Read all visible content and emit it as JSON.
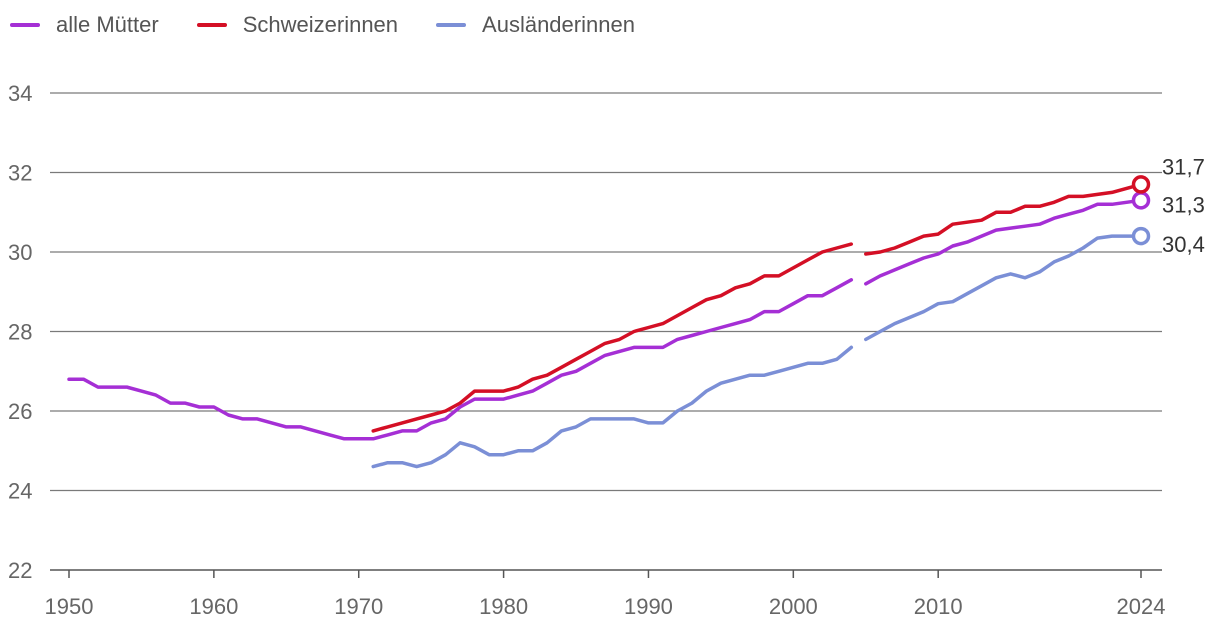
{
  "chart_data": {
    "type": "line",
    "title": "",
    "xlabel": "",
    "ylabel": "",
    "xlim": [
      1950,
      2024
    ],
    "ylim": [
      22,
      34
    ],
    "y_ticks": [
      22,
      24,
      26,
      28,
      30,
      32,
      34
    ],
    "x_ticks": [
      1950,
      1960,
      1970,
      1980,
      1990,
      2000,
      2010,
      2024
    ],
    "grid": true,
    "legend_position": "top-left",
    "gap_after_year": 2004,
    "series": [
      {
        "name": "alle Mütter",
        "color": "#a52fd5",
        "end_label": "31,3",
        "x": [
          1950,
          1951,
          1952,
          1953,
          1954,
          1955,
          1956,
          1957,
          1958,
          1959,
          1960,
          1961,
          1962,
          1963,
          1964,
          1965,
          1966,
          1967,
          1968,
          1969,
          1970,
          1971,
          1972,
          1973,
          1974,
          1975,
          1976,
          1977,
          1978,
          1979,
          1980,
          1981,
          1982,
          1983,
          1984,
          1985,
          1986,
          1987,
          1988,
          1989,
          1990,
          1991,
          1992,
          1993,
          1994,
          1995,
          1996,
          1997,
          1998,
          1999,
          2000,
          2001,
          2002,
          2003,
          2004,
          2005,
          2006,
          2007,
          2008,
          2009,
          2010,
          2011,
          2012,
          2013,
          2014,
          2015,
          2016,
          2017,
          2018,
          2019,
          2020,
          2021,
          2022,
          2023,
          2024
        ],
        "values": [
          26.8,
          26.8,
          26.6,
          26.6,
          26.6,
          26.5,
          26.4,
          26.2,
          26.2,
          26.1,
          26.1,
          25.9,
          25.8,
          25.8,
          25.7,
          25.6,
          25.6,
          25.5,
          25.4,
          25.3,
          25.3,
          25.3,
          25.4,
          25.5,
          25.5,
          25.7,
          25.8,
          26.1,
          26.3,
          26.3,
          26.3,
          26.4,
          26.5,
          26.7,
          26.9,
          27.0,
          27.2,
          27.4,
          27.5,
          27.6,
          27.6,
          27.6,
          27.8,
          27.9,
          28.0,
          28.1,
          28.2,
          28.3,
          28.5,
          28.5,
          28.7,
          28.9,
          28.9,
          29.1,
          29.3,
          29.2,
          29.4,
          29.55,
          29.7,
          29.85,
          29.95,
          30.15,
          30.25,
          30.4,
          30.55,
          30.6,
          30.65,
          30.7,
          30.85,
          30.95,
          31.05,
          31.2,
          31.2,
          31.25,
          31.3
        ]
      },
      {
        "name": "Schweizerinnen",
        "color": "#d40f25",
        "end_label": "31,7",
        "x": [
          1971,
          1972,
          1973,
          1974,
          1975,
          1976,
          1977,
          1978,
          1979,
          1980,
          1981,
          1982,
          1983,
          1984,
          1985,
          1986,
          1987,
          1988,
          1989,
          1990,
          1991,
          1992,
          1993,
          1994,
          1995,
          1996,
          1997,
          1998,
          1999,
          2000,
          2001,
          2002,
          2003,
          2004,
          2005,
          2006,
          2007,
          2008,
          2009,
          2010,
          2011,
          2012,
          2013,
          2014,
          2015,
          2016,
          2017,
          2018,
          2019,
          2020,
          2021,
          2022,
          2023,
          2024
        ],
        "values": [
          25.5,
          25.6,
          25.7,
          25.8,
          25.9,
          26.0,
          26.2,
          26.5,
          26.5,
          26.5,
          26.6,
          26.8,
          26.9,
          27.1,
          27.3,
          27.5,
          27.7,
          27.8,
          28.0,
          28.1,
          28.2,
          28.4,
          28.6,
          28.8,
          28.9,
          29.1,
          29.2,
          29.4,
          29.4,
          29.6,
          29.8,
          30.0,
          30.1,
          30.2,
          29.95,
          30.0,
          30.1,
          30.25,
          30.4,
          30.45,
          30.7,
          30.75,
          30.8,
          31.0,
          31.0,
          31.15,
          31.15,
          31.25,
          31.4,
          31.4,
          31.45,
          31.5,
          31.6,
          31.7
        ]
      },
      {
        "name": "Ausländerinnen",
        "color": "#7b8fd6",
        "end_label": "30,4",
        "x": [
          1971,
          1972,
          1973,
          1974,
          1975,
          1976,
          1977,
          1978,
          1979,
          1980,
          1981,
          1982,
          1983,
          1984,
          1985,
          1986,
          1987,
          1988,
          1989,
          1990,
          1991,
          1992,
          1993,
          1994,
          1995,
          1996,
          1997,
          1998,
          1999,
          2000,
          2001,
          2002,
          2003,
          2004,
          2005,
          2006,
          2007,
          2008,
          2009,
          2010,
          2011,
          2012,
          2013,
          2014,
          2015,
          2016,
          2017,
          2018,
          2019,
          2020,
          2021,
          2022,
          2023,
          2024
        ],
        "values": [
          24.6,
          24.7,
          24.7,
          24.6,
          24.7,
          24.9,
          25.2,
          25.1,
          24.9,
          24.9,
          25.0,
          25.0,
          25.2,
          25.5,
          25.6,
          25.8,
          25.8,
          25.8,
          25.8,
          25.7,
          25.7,
          26.0,
          26.2,
          26.5,
          26.7,
          26.8,
          26.9,
          26.9,
          27.0,
          27.1,
          27.2,
          27.2,
          27.3,
          27.6,
          27.8,
          28.0,
          28.2,
          28.35,
          28.5,
          28.7,
          28.75,
          28.95,
          29.15,
          29.35,
          29.45,
          29.35,
          29.5,
          29.75,
          29.9,
          30.1,
          30.35,
          30.4,
          30.4,
          30.4
        ]
      }
    ]
  }
}
